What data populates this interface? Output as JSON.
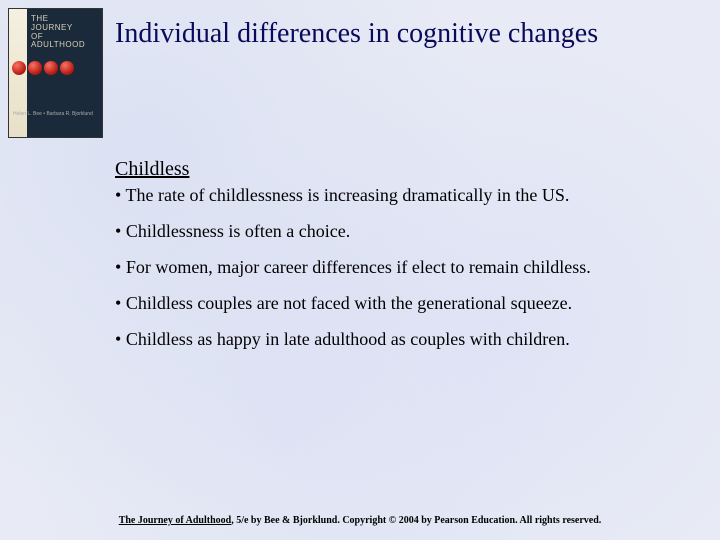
{
  "book": {
    "title_line1": "THE",
    "title_line2": "JOURNEY",
    "title_line3": "OF",
    "title_line4": "ADULTHOOD",
    "authors": "Helen L. Bee • Barbara R. Bjorklund"
  },
  "slide": {
    "title": "Individual differences in cognitive changes",
    "section_heading": "Childless",
    "bullets": [
      "The rate of childlessness is increasing dramatically in the US.",
      "Childlessness is often a choice.",
      "For women, major career differences if elect to remain childless.",
      "Childless couples are not faced with the generational squeeze.",
      "Childless as happy in late adulthood as couples with children."
    ]
  },
  "footer": {
    "book_title": "The Journey of Adulthood",
    "rest": ", 5/e by Bee & Bjorklund.   Copyright © 2004 by Pearson Education. All rights reserved."
  },
  "colors": {
    "title_color": "#0a0a5a",
    "background": "#e8ebf5",
    "text": "#000000"
  }
}
